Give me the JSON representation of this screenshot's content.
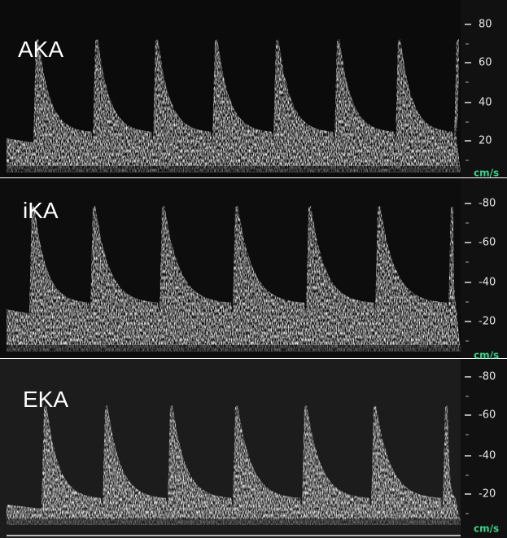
{
  "panels": [
    {
      "label": "AKA",
      "ticks": [
        "80",
        "60",
        "40",
        "20"
      ],
      "unit": "cm/s"
    },
    {
      "label": "iKA",
      "ticks": [
        "-80",
        "-60",
        "-40",
        "-20"
      ],
      "unit": "cm/s"
    },
    {
      "label": "EKA",
      "ticks": [
        "-80",
        "-60",
        "-40",
        "-20"
      ],
      "unit": "cm/s"
    }
  ]
}
